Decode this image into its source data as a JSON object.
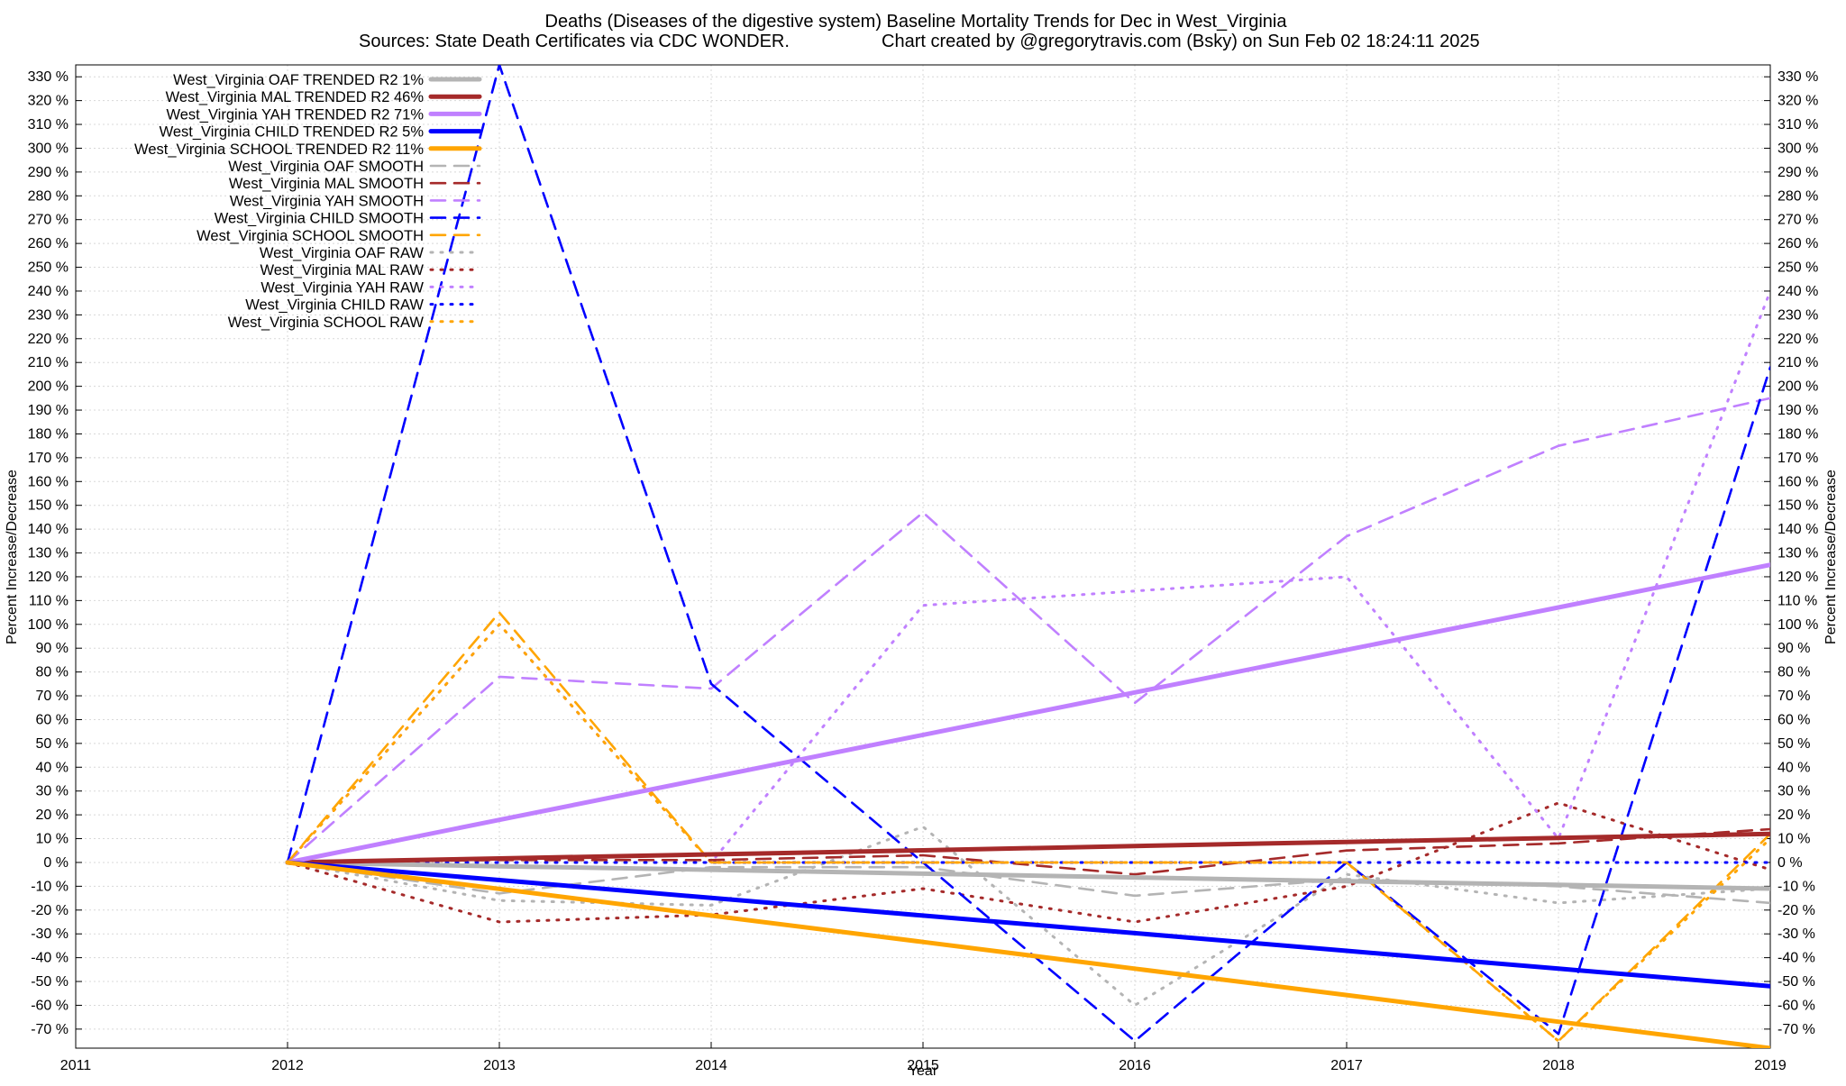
{
  "chart_data": {
    "type": "line",
    "title_line1": "Deaths (Diseases of the digestive system)  Baseline Mortality Trends for Dec in West_Virginia",
    "title_line2_left": "Sources: State Death Certificates via CDC WONDER.",
    "title_line2_right": "Chart created by @gregorytravis.com (Bsky) on Sun Feb 02 18:24:11 2025",
    "xlabel": "Year",
    "ylabel_left": "Percent Increase/Decrease",
    "ylabel_right": "Percent Increase/Decrease",
    "xlim": [
      2011,
      2019
    ],
    "ylim": [
      -78,
      335
    ],
    "x_ticks": [
      2011,
      2012,
      2013,
      2014,
      2015,
      2016,
      2017,
      2018,
      2019
    ],
    "x_tick_labels": [
      "2011",
      "2012",
      "2013",
      "2014",
      "2015",
      "2016",
      "2017",
      "2018",
      "2019"
    ],
    "y_ticks": [
      330,
      320,
      310,
      300,
      290,
      280,
      270,
      260,
      250,
      240,
      230,
      220,
      210,
      200,
      190,
      180,
      170,
      160,
      150,
      140,
      130,
      120,
      110,
      100,
      90,
      80,
      70,
      60,
      50,
      40,
      30,
      20,
      10,
      0,
      -10,
      -20,
      -30,
      -40,
      -50,
      -60,
      -70
    ],
    "y_tick_labels": [
      "330 %",
      "320 %",
      "310 %",
      "300 %",
      "290 %",
      "280 %",
      "270 %",
      "260 %",
      "250 %",
      "240 %",
      "230 %",
      "220 %",
      "210 %",
      "200 %",
      "190 %",
      "180 %",
      "170 %",
      "160 %",
      "150 %",
      "140 %",
      "130 %",
      "120 %",
      "110 %",
      "100 %",
      "90 %",
      "80 %",
      "70 %",
      "60 %",
      "50 %",
      "40 %",
      "30 %",
      "20 %",
      "10 %",
      "0 %",
      "-10 %",
      "-20 %",
      "-30 %",
      "-40 %",
      "-50 %",
      "-60 %",
      "-70 %"
    ],
    "grid": true,
    "legend_position": "top-left",
    "x": [
      2012,
      2013,
      2014,
      2015,
      2016,
      2017,
      2018,
      2019
    ],
    "series": [
      {
        "name": "West_Virginia OAF TRENDED R2  1%",
        "style": "solid",
        "color": "#b4b4b4",
        "values": [
          0,
          -1.6,
          -3.1,
          -4.7,
          -6.3,
          -7.9,
          -9.4,
          -11
        ]
      },
      {
        "name": "West_Virginia MAL TRENDED R2  46%",
        "style": "solid",
        "color": "#a52a2a",
        "values": [
          0,
          1.7,
          3.4,
          5.1,
          6.9,
          8.6,
          10.3,
          12
        ]
      },
      {
        "name": "West_Virginia YAH TRENDED R2  71%",
        "style": "solid",
        "color": "#c080ff",
        "values": [
          0,
          17.9,
          35.7,
          53.6,
          71.4,
          89.3,
          107.1,
          125
        ]
      },
      {
        "name": "West_Virginia CHILD TRENDED R2  5%",
        "style": "solid",
        "color": "#0000ff",
        "values": [
          0,
          -7.4,
          -14.9,
          -22.3,
          -29.7,
          -37.1,
          -44.6,
          -52
        ]
      },
      {
        "name": "West_Virginia SCHOOL TRENDED R2  11%",
        "style": "solid",
        "color": "#ffa500",
        "values": [
          0,
          -11.1,
          -22.3,
          -33.4,
          -44.6,
          -55.7,
          -66.9,
          -78
        ]
      },
      {
        "name": "West_Virginia OAF SMOOTH",
        "style": "dashed",
        "color": "#b4b4b4",
        "values": [
          0,
          -13,
          -2,
          -2,
          -14,
          -7,
          -10,
          -17
        ]
      },
      {
        "name": "West_Virginia MAL SMOOTH",
        "style": "dashed",
        "color": "#a52a2a",
        "values": [
          0,
          1,
          1,
          3,
          -5,
          5,
          8,
          14
        ]
      },
      {
        "name": "West_Virginia YAH SMOOTH",
        "style": "dashed",
        "color": "#c080ff",
        "values": [
          0,
          78,
          73,
          147,
          67,
          137,
          175,
          195
        ]
      },
      {
        "name": "West_Virginia CHILD SMOOTH",
        "style": "dashed",
        "color": "#0000ff",
        "values": [
          0,
          335,
          75,
          0,
          -75,
          0,
          -72,
          208
        ]
      },
      {
        "name": "West_Virginia SCHOOL SMOOTH",
        "style": "dashed",
        "color": "#ffa500",
        "values": [
          0,
          105,
          0,
          0,
          0,
          0,
          -75,
          12
        ]
      },
      {
        "name": "West_Virginia OAF RAW",
        "style": "dotted",
        "color": "#b4b4b4",
        "values": [
          0,
          -16,
          -18,
          15,
          -60,
          -5,
          -17,
          -11
        ]
      },
      {
        "name": "West_Virginia MAL RAW",
        "style": "dotted",
        "color": "#a52a2a",
        "values": [
          0,
          -25,
          -22,
          -11,
          -25,
          -10,
          25,
          -3
        ]
      },
      {
        "name": "West_Virginia YAH RAW",
        "style": "dotted",
        "color": "#c080ff",
        "values": [
          0,
          100,
          0,
          108,
          114,
          120,
          10,
          240
        ]
      },
      {
        "name": "West_Virginia CHILD RAW",
        "style": "dotted",
        "color": "#0000ff",
        "values": [
          0,
          0,
          0,
          0,
          0,
          0,
          0,
          0
        ]
      },
      {
        "name": "West_Virginia SCHOOL RAW",
        "style": "dotted",
        "color": "#ffa500",
        "values": [
          0,
          100,
          0,
          0,
          0,
          0,
          -75,
          10
        ]
      }
    ]
  }
}
